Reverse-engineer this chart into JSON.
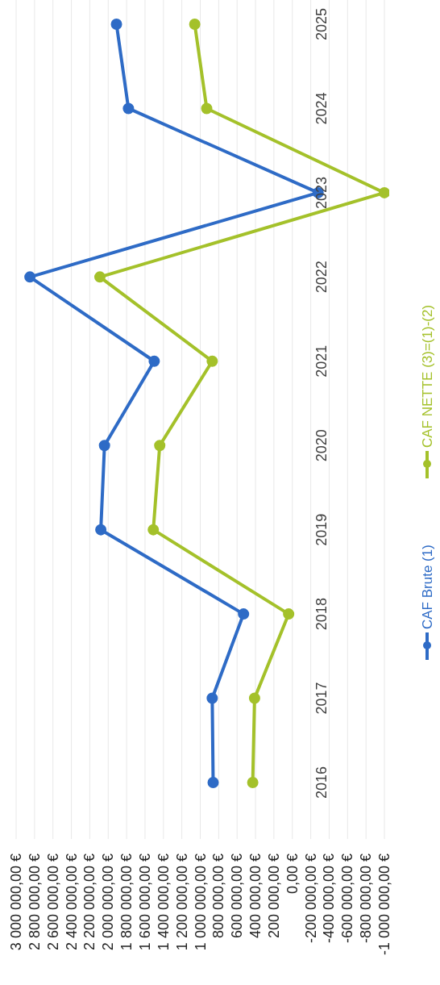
{
  "chart_data": {
    "type": "line",
    "orientation": "horizontal",
    "categories": [
      "2025",
      "2024",
      "2023",
      "2022",
      "2021",
      "2020",
      "2019",
      "2018",
      "2017",
      "2016"
    ],
    "series": [
      {
        "name": "CAF Brute (1)",
        "color": "#2e6bc6",
        "values": [
          1910000,
          1780000,
          -280000,
          2850000,
          1500000,
          2040000,
          2080000,
          530000,
          870000,
          860000
        ]
      },
      {
        "name": "CAF NETTE (3)=(1)-(2)",
        "color": "#a4c12a",
        "values": [
          1060000,
          930000,
          -1000000,
          2090000,
          870000,
          1440000,
          1510000,
          40000,
          410000,
          430000
        ]
      }
    ],
    "xlim": [
      3000000,
      -1000000
    ],
    "xticks": [
      {
        "value": 3000000,
        "label": "3 000 000,00 €"
      },
      {
        "value": 2800000,
        "label": "2 800 000,00 €"
      },
      {
        "value": 2600000,
        "label": "2 600 000,00 €"
      },
      {
        "value": 2400000,
        "label": "2 400 000,00 €"
      },
      {
        "value": 2200000,
        "label": "2 200 000,00 €"
      },
      {
        "value": 2000000,
        "label": "2 000 000,00 €"
      },
      {
        "value": 1800000,
        "label": "1 800 000,00 €"
      },
      {
        "value": 1600000,
        "label": "1 600 000,00 €"
      },
      {
        "value": 1400000,
        "label": "1 400 000,00 €"
      },
      {
        "value": 1200000,
        "label": "1 200 000,00 €"
      },
      {
        "value": 1000000,
        "label": "1 000 000,00 €"
      },
      {
        "value": 800000,
        "label": "800 000,00 €"
      },
      {
        "value": 600000,
        "label": "600 000,00 €"
      },
      {
        "value": 400000,
        "label": "400 000,00 €"
      },
      {
        "value": 200000,
        "label": "200 000,00 €"
      },
      {
        "value": 0,
        "label": "0,00 €"
      },
      {
        "value": -200000,
        "label": "-200 000,00 €"
      },
      {
        "value": -400000,
        "label": "-400 000,00 €"
      },
      {
        "value": -600000,
        "label": "-600 000,00 €"
      },
      {
        "value": -800000,
        "label": "-800 000,00 €"
      },
      {
        "value": -1000000,
        "label": "-1 000 000,00 €"
      }
    ],
    "grid": "x",
    "legend": "right",
    "marker": "circle",
    "line_style": "solid"
  }
}
